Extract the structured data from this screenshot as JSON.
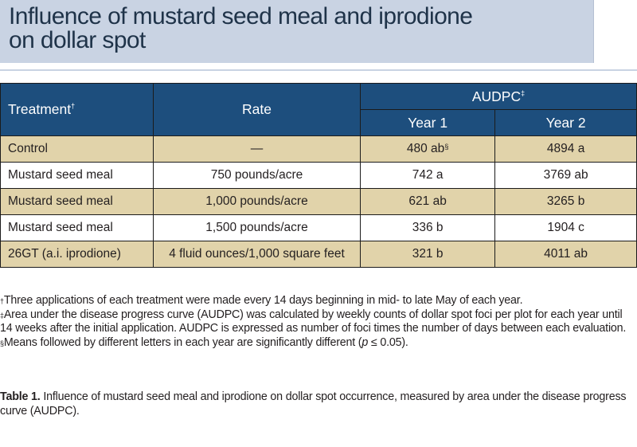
{
  "title": {
    "line1": "Influence of mustard seed meal and iprodione",
    "line2": "on dollar spot"
  },
  "table": {
    "headers": {
      "treatment": "Treatment",
      "treatment_mark": "†",
      "rate": "Rate",
      "audpc": "AUDPC",
      "audpc_mark": "‡",
      "year1": "Year 1",
      "year2": "Year 2"
    },
    "rows": [
      {
        "treatment": "Control",
        "rate": "—",
        "year1": "480 ab",
        "year1_mark": "§",
        "year2": "4894 a"
      },
      {
        "treatment": "Mustard seed meal",
        "rate": "750 pounds/acre",
        "year1": "742 a",
        "year1_mark": "",
        "year2": "3769 ab"
      },
      {
        "treatment": "Mustard seed meal",
        "rate": "1,000 pounds/acre",
        "year1": "621 ab",
        "year1_mark": "",
        "year2": "3265 b"
      },
      {
        "treatment": "Mustard seed meal",
        "rate": "1,500 pounds/acre",
        "year1": "336 b",
        "year1_mark": "",
        "year2": "1904 c"
      },
      {
        "treatment": "26GT (a.i. iprodione)",
        "rate": "4 fluid ounces/1,000 square feet",
        "year1": "321 b",
        "year1_mark": "",
        "year2": "4011 ab"
      }
    ]
  },
  "footnotes": {
    "dagger_mark": "†",
    "dagger": "Three applications of each treatment were made every 14 days beginning in mid- to late May of each year.",
    "ddagger_mark": "‡",
    "ddagger": "Area under the disease progress curve (AUDPC) was calculated by weekly counts of dollar spot foci per plot for each year until 14 weeks after the initial application. AUDPC is expressed as number of foci times the number of days between each evaluation.",
    "section_mark": "§",
    "section_pre": "Means followed by different letters in each year are significantly different (",
    "section_var": "p",
    "section_post": " ≤ 0.05)."
  },
  "caption": {
    "label": "Table 1.",
    "text": " Influence of mustard seed meal and iprodione on dollar spot occurrence, measured by area under the disease progress curve (AUDPC)."
  }
}
